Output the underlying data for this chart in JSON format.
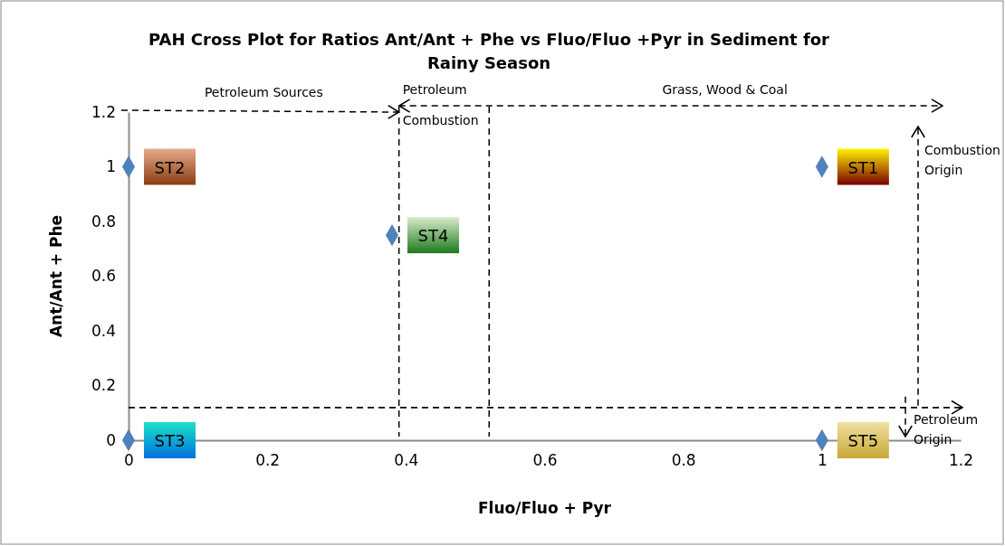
{
  "chart_data": {
    "type": "scatter",
    "title": "PAH Cross Plot for Ratios Ant/Ant + Phe vs Fluo/Fluo +Pyr in Sediment for Rainy Season",
    "xlabel": "Fluo/Fluo + Pyr",
    "ylabel": "Ant/Ant + Phe",
    "x": [
      0,
      0.38,
      1,
      0,
      1
    ],
    "series": [
      {
        "color": "#4f81bd",
        "values": [
          1,
          0.75,
          1,
          0,
          0
        ]
      }
    ],
    "marker": "diamond",
    "grid": false,
    "xlim": [
      0,
      1.2
    ],
    "ylim": [
      0,
      1.2
    ],
    "xticks": [
      0,
      0.2,
      0.4,
      0.6,
      0.8,
      1,
      1.2
    ],
    "yticks": [
      0,
      0.2,
      0.4,
      0.6,
      0.8,
      1,
      1.2
    ],
    "ref_lines": [
      {
        "axis": "x",
        "value": 0.39,
        "color": "#000000",
        "line_style": "dashed"
      },
      {
        "axis": "x",
        "value": 0.52,
        "color": "#000000",
        "line_style": "dashed"
      },
      {
        "axis": "y",
        "value": 0.12,
        "color": "#000000",
        "line_style": "dashed"
      }
    ],
    "annotations": [
      "Petroleum Sources",
      "Petroleum Combustion",
      "Grass, Wood & Coal",
      "Combustion Origin",
      "Petroleum Origin",
      {
        "text": "ST2",
        "x": 0,
        "y": 1
      },
      {
        "text": "ST4",
        "x": 0.38,
        "y": 0.75
      },
      {
        "text": "ST1",
        "x": 1,
        "y": 1
      },
      {
        "text": "ST3",
        "x": 0,
        "y": 0
      },
      {
        "text": "ST5",
        "x": 1,
        "y": 0
      }
    ]
  }
}
